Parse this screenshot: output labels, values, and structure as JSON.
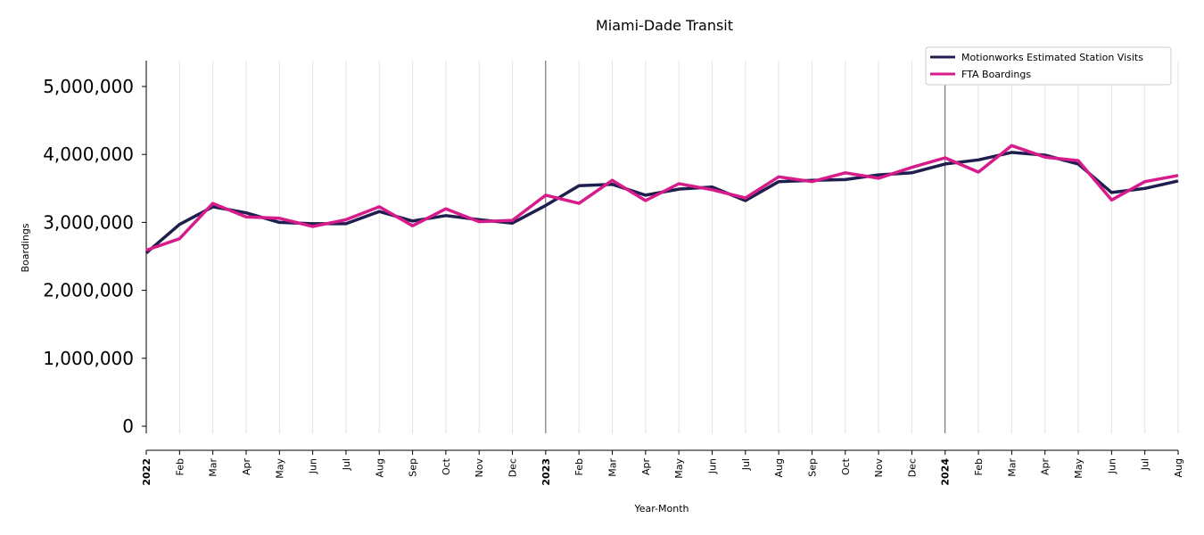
{
  "chart_data": {
    "type": "line",
    "title": "Miami-Dade Transit",
    "xlabel": "Year-Month",
    "ylabel": "Boardings",
    "ylim": [
      -350000,
      5380000
    ],
    "yticks": [
      0,
      1000000,
      2000000,
      3000000,
      4000000,
      5000000
    ],
    "ytick_labels": [
      "0",
      "1,000,000",
      "2,000,000",
      "3,000,000",
      "4,000,000",
      "5,000,000"
    ],
    "x": [
      "2022",
      "Feb",
      "Mar",
      "Apr",
      "May",
      "Jun",
      "Jul",
      "Aug",
      "Sep",
      "Oct",
      "Nov",
      "Dec",
      "2023",
      "Feb",
      "Mar",
      "Apr",
      "May",
      "Jun",
      "Jul",
      "Aug",
      "Sep",
      "Oct",
      "Nov",
      "Dec",
      "2024",
      "Feb",
      "Mar",
      "Apr",
      "May",
      "Jun",
      "Jul",
      "Aug"
    ],
    "year_markers": [
      "2023",
      "2024"
    ],
    "grid": "vertical",
    "legend_position": "top-right",
    "series": [
      {
        "name": "Motionworks Estimated Station Visits",
        "color": "#1f1f4f",
        "values": [
          2550000,
          2970000,
          3230000,
          3140000,
          3000000,
          2980000,
          2980000,
          3160000,
          3020000,
          3100000,
          3040000,
          2990000,
          3250000,
          3540000,
          3560000,
          3400000,
          3490000,
          3520000,
          3320000,
          3600000,
          3620000,
          3630000,
          3700000,
          3730000,
          3860000,
          3920000,
          4030000,
          3990000,
          3860000,
          3440000,
          3500000,
          3610000
        ]
      },
      {
        "name": "FTA Boardings",
        "color": "#d81b8a",
        "values": [
          2590000,
          2760000,
          3280000,
          3080000,
          3060000,
          2940000,
          3040000,
          3230000,
          2950000,
          3200000,
          3010000,
          3030000,
          3400000,
          3280000,
          3620000,
          3320000,
          3570000,
          3480000,
          3360000,
          3670000,
          3600000,
          3730000,
          3650000,
          3810000,
          3950000,
          3740000,
          4130000,
          3960000,
          3910000,
          3330000,
          3600000,
          3690000
        ]
      }
    ]
  }
}
